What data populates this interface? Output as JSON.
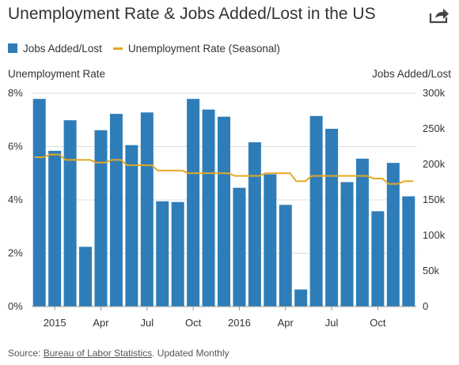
{
  "title": "Unemployment Rate & Jobs Added/Lost in the US",
  "icons": {
    "share": "share-icon"
  },
  "legend": {
    "jobs": "Jobs Added/Lost",
    "rate": "Unemployment Rate (Seasonal)"
  },
  "colors": {
    "bar": "#2e7db8",
    "line": "#e5a823",
    "grid": "#dddddd"
  },
  "source": {
    "prefix": "Source: ",
    "link": "Bureau of Labor Statistics",
    "suffix": ". Updated Monthly"
  },
  "chart_data": {
    "type": "bar+line",
    "ylabel_left": "Unemployment Rate",
    "ylabel_right": "Jobs Added/Lost",
    "y_left": {
      "ticks": [
        "0%",
        "2%",
        "4%",
        "6%",
        "8%"
      ],
      "range": [
        0,
        8
      ]
    },
    "y_right": {
      "ticks": [
        "0",
        "50k",
        "100k",
        "150k",
        "200k",
        "250k",
        "300k"
      ],
      "range": [
        0,
        300000
      ]
    },
    "x_tick_labels": [
      {
        "label": "2015",
        "index": 1
      },
      {
        "label": "Apr",
        "index": 4
      },
      {
        "label": "Jul",
        "index": 7
      },
      {
        "label": "Oct",
        "index": 10
      },
      {
        "label": "2016",
        "index": 13
      },
      {
        "label": "Apr",
        "index": 16
      },
      {
        "label": "Jul",
        "index": 19
      },
      {
        "label": "Oct",
        "index": 22
      }
    ],
    "series": [
      {
        "name": "Jobs Added/Lost",
        "kind": "bar",
        "values": [
          292000,
          219000,
          262000,
          84000,
          248000,
          271000,
          227000,
          273000,
          148000,
          147000,
          292000,
          277000,
          267000,
          167000,
          231000,
          186000,
          143000,
          24000,
          268000,
          250000,
          175000,
          208000,
          134000,
          202000,
          155000
        ]
      },
      {
        "name": "Unemployment Rate (Seasonal)",
        "kind": "line",
        "values": [
          5.6,
          5.7,
          5.5,
          5.5,
          5.4,
          5.5,
          5.3,
          5.3,
          5.1,
          5.1,
          5.0,
          5.0,
          5.0,
          4.9,
          4.9,
          5.0,
          5.0,
          4.7,
          4.9,
          4.9,
          4.9,
          4.9,
          4.8,
          4.6,
          4.7
        ]
      }
    ],
    "grid": true,
    "legend_position": "top-left"
  }
}
